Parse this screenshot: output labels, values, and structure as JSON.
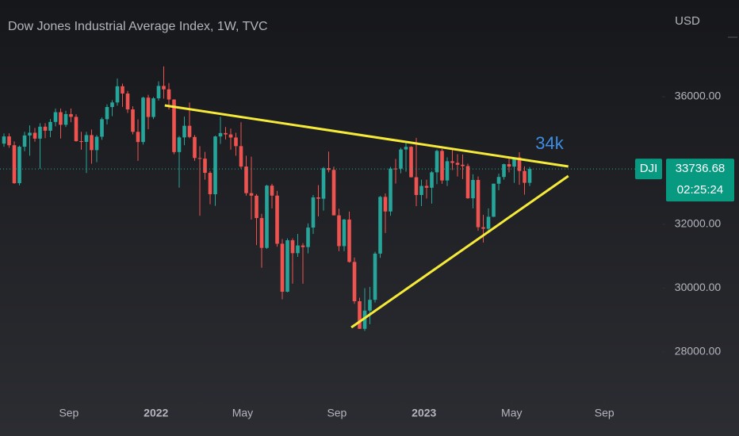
{
  "chart_data": {
    "type": "candlestick",
    "title": "Dow Jones Industrial Average Index, 1W, TVC",
    "currency": "USD",
    "symbol": "DJI",
    "last_price": 33736.68,
    "countdown": "02:25:24",
    "annotation": "34k",
    "up_color": "#26a69a",
    "down_color": "#ef5350",
    "line_color": "#f5ea3a",
    "xlim": [
      -0.77,
      127.69
    ],
    "xticks": [
      {
        "value": 12.6,
        "label": "Sep"
      },
      {
        "value": 29.5,
        "label": "2022"
      },
      {
        "value": 46.3,
        "label": "May"
      },
      {
        "value": 64.6,
        "label": "Sep"
      },
      {
        "value": 81.5,
        "label": "2023"
      },
      {
        "value": 98.5,
        "label": "May"
      },
      {
        "value": 116.5,
        "label": "Sep"
      }
    ],
    "ylim": [
      26485,
      39031
    ],
    "yticks": [
      {
        "value": 28000,
        "label": "28000.00"
      },
      {
        "value": 30000,
        "label": "30000.00"
      },
      {
        "value": 32000,
        "label": "32000.00"
      },
      {
        "value": 36000,
        "label": "36000.00"
      }
    ],
    "open": [
      34529,
      34756,
      34480,
      33290,
      34433,
      34786,
      34870,
      34687,
      35061,
      34935,
      35209,
      35515,
      35120,
      35455,
      35369,
      34608,
      34584,
      34798,
      34326,
      34746,
      35295,
      35677,
      35820,
      36328,
      36100,
      35602,
      34899,
      34580,
      35971,
      35365,
      35950,
      36338,
      36231,
      35912,
      34265,
      34725,
      35089,
      34738,
      34079,
      34059,
      33614,
      32944,
      34754,
      34861,
      34818,
      34721,
      34451,
      33811,
      32977,
      32899,
      32197,
      31262,
      33213,
      32900,
      31393,
      29889,
      31501,
      31097,
      31338,
      31288,
      31899,
      32845,
      32803,
      33761,
      33707,
      32283,
      31318,
      32151,
      30822,
      29590,
      28726,
      29297,
      29635,
      31083,
      32861,
      32403,
      33749,
      33746,
      34347,
      34430,
      33477,
      32920,
      33204,
      33147,
      33631,
      34303,
      33375,
      33978,
      33926,
      33869,
      33827,
      32817,
      33391,
      31910,
      31862,
      32238,
      33274,
      33485,
      33886,
      33809,
      34098,
      33674,
      33301
    ],
    "high": [
      34849,
      34850,
      34600,
      34470,
      34900,
      35100,
      35020,
      35170,
      35170,
      35300,
      35630,
      35630,
      35560,
      35630,
      35450,
      34900,
      34900,
      34970,
      34800,
      35350,
      35760,
      35890,
      36570,
      36410,
      36180,
      35700,
      35290,
      36000,
      36060,
      35990,
      36480,
      36950,
      36430,
      35920,
      34770,
      35380,
      35820,
      34800,
      34450,
      34270,
      33670,
      34780,
      35370,
      35050,
      35000,
      34870,
      35200,
      34150,
      34120,
      32950,
      32330,
      33240,
      33270,
      33050,
      31540,
      31560,
      31560,
      31700,
      31410,
      32030,
      32920,
      33230,
      33800,
      34280,
      33810,
      32490,
      32170,
      32400,
      30960,
      29700,
      30000,
      30040,
      31140,
      32890,
      32970,
      33800,
      34050,
      34400,
      34600,
      34450,
      34710,
      33400,
      33400,
      33670,
      34340,
      34360,
      34100,
      34340,
      34200,
      34190,
      33900,
      33570,
      33500,
      32300,
      32500,
      33280,
      33590,
      33900,
      34080,
      34100,
      34260,
      33820,
      33800
    ],
    "low": [
      34430,
      34400,
      33270,
      33220,
      34290,
      34150,
      34590,
      33740,
      34700,
      34730,
      35070,
      34690,
      35050,
      35200,
      34590,
      34340,
      33610,
      33900,
      33950,
      34650,
      35130,
      35390,
      35720,
      35680,
      35490,
      34820,
      33990,
      34500,
      34980,
      35300,
      35880,
      35940,
      35600,
      34200,
      33150,
      34480,
      34700,
      33990,
      32270,
      33400,
      32630,
      32580,
      34520,
      34660,
      34340,
      34150,
      33750,
      32900,
      32150,
      31350,
      30640,
      31230,
      32500,
      31300,
      29650,
      29870,
      30140,
      30980,
      30140,
      31090,
      31700,
      32250,
      32430,
      33630,
      32280,
      31160,
      31160,
      30800,
      29510,
      28720,
      28660,
      28870,
      29550,
      30950,
      31730,
      32270,
      33280,
      33600,
      33650,
      33470,
      32570,
      32570,
      32810,
      32650,
      33260,
      33270,
      33200,
      33700,
      33500,
      33420,
      32800,
      32500,
      31800,
      31430,
      31800,
      32230,
      33070,
      33400,
      33630,
      33300,
      33240,
      32930,
      33200
    ],
    "close": [
      34756,
      34480,
      33290,
      34433,
      34786,
      34870,
      34687,
      35061,
      34935,
      35209,
      35515,
      35120,
      35455,
      35369,
      34608,
      34584,
      34798,
      34326,
      34746,
      35295,
      35677,
      35820,
      36328,
      36100,
      35602,
      34899,
      34580,
      35971,
      35365,
      35950,
      36338,
      36231,
      35912,
      34265,
      34725,
      35089,
      34738,
      34079,
      34059,
      33614,
      32944,
      34754,
      34861,
      34818,
      34721,
      34451,
      33811,
      32977,
      32899,
      32197,
      31262,
      33213,
      32900,
      31393,
      29889,
      31501,
      31097,
      31338,
      31288,
      31899,
      32845,
      32803,
      33761,
      33707,
      32283,
      31318,
      32151,
      30822,
      29590,
      28726,
      29297,
      29635,
      31083,
      32861,
      32403,
      33749,
      33746,
      34347,
      34430,
      33477,
      32920,
      33204,
      33147,
      33631,
      34303,
      33375,
      33978,
      33926,
      33869,
      33827,
      32817,
      33391,
      31910,
      31862,
      32238,
      33274,
      33485,
      33886,
      33809,
      34098,
      33674,
      33301,
      33736
    ],
    "trendlines": [
      {
        "x": [
          31.2,
          109.5
        ],
        "y": [
          35727,
          33814
        ]
      },
      {
        "x": [
          67.4,
          109.5
        ],
        "y": [
          28770,
          33515
        ]
      }
    ]
  }
}
